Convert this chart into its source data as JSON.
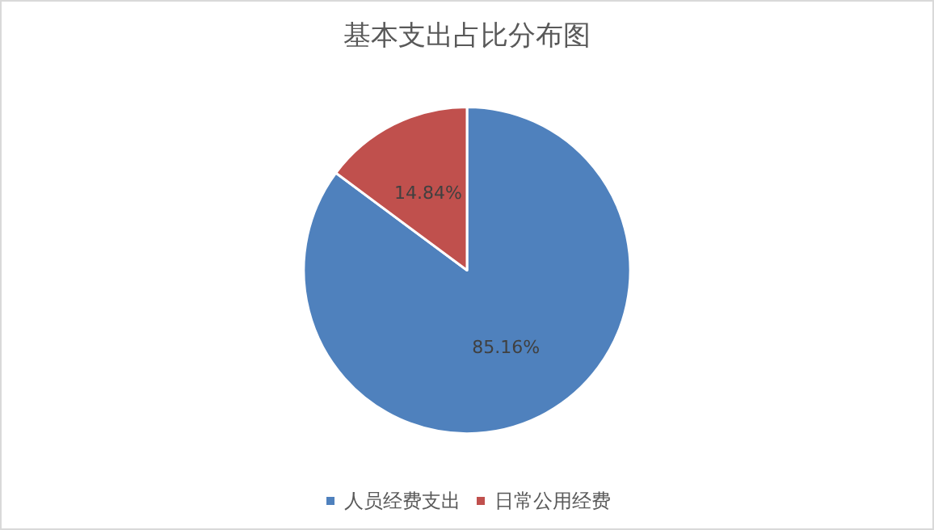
{
  "chart_data": {
    "type": "pie",
    "title": "基本支出占比分布图",
    "categories": [
      "人员经费支出",
      "日常公用经费"
    ],
    "values": [
      85.16,
      14.84
    ],
    "colors": [
      "#4f81bd",
      "#c0504d"
    ],
    "value_labels": [
      "85.16%",
      "14.84%"
    ],
    "legend": "bottom"
  }
}
